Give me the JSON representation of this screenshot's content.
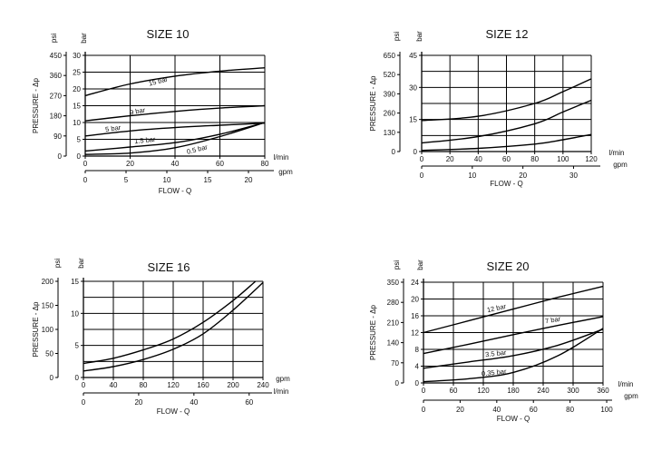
{
  "chart_data": [
    {
      "type": "line",
      "title": "SIZE 10",
      "ylabel": "PRESSURE - Δp",
      "y_units": [
        "psi",
        "bar"
      ],
      "y_ticks_psi": [
        "450",
        "360",
        "270",
        "180",
        "90",
        "0"
      ],
      "y_ticks_bar": [
        "30",
        "25",
        "20",
        "15",
        "10",
        "5",
        "0"
      ],
      "ylim": [
        0,
        30
      ],
      "xlabel": "FLOW - Q",
      "x_units": [
        "l/min",
        "gpm"
      ],
      "x_ticks_lmin": [
        "0",
        "20",
        "40",
        "60",
        "80"
      ],
      "x_ticks_gpm": [
        "0",
        "5",
        "10",
        "15",
        "20"
      ],
      "xlim": [
        0,
        80
      ],
      "series": [
        {
          "name": "15 bar",
          "x": [
            0,
            20,
            40,
            60,
            80
          ],
          "y": [
            18,
            21.5,
            23.8,
            25.3,
            26.3
          ]
        },
        {
          "name": "9 bar",
          "x": [
            0,
            20,
            40,
            60,
            80
          ],
          "y": [
            10.5,
            12,
            13.3,
            14.3,
            15
          ]
        },
        {
          "name": "5 bar",
          "x": [
            0,
            20,
            40,
            60,
            80
          ],
          "y": [
            6,
            7.5,
            8.5,
            9.2,
            9.8
          ]
        },
        {
          "name": "1.5 bar",
          "x": [
            0,
            20,
            40,
            60,
            80
          ],
          "y": [
            1.5,
            2.7,
            4,
            6.5,
            10
          ]
        },
        {
          "name": "0.5 bar",
          "x": [
            0,
            20,
            40,
            60,
            80
          ],
          "y": [
            0.5,
            0.9,
            2.5,
            5.8,
            10
          ]
        }
      ]
    },
    {
      "type": "line",
      "title": "SIZE 12",
      "ylabel": "PRESSURE - Δp",
      "y_units": [
        "psi",
        "bar"
      ],
      "y_ticks_psi": [
        "650",
        "520",
        "390",
        "260",
        "130",
        "0"
      ],
      "y_ticks_bar": [
        "45",
        "30",
        "15",
        "0"
      ],
      "ylim": [
        0,
        45
      ],
      "xlabel": "FLOW - Q",
      "x_units": [
        "l/min",
        "gpm"
      ],
      "x_ticks_lmin": [
        "0",
        "20",
        "40",
        "60",
        "80",
        "100",
        "120"
      ],
      "x_ticks_gpm": [
        "0",
        "10",
        "20",
        "30"
      ],
      "xlim": [
        0,
        120
      ],
      "series": [
        {
          "x": [
            0,
            40,
            80,
            100,
            120
          ],
          "y": [
            14.5,
            16.5,
            22.5,
            28,
            34
          ]
        },
        {
          "x": [
            0,
            40,
            80,
            100,
            120
          ],
          "y": [
            4,
            7,
            13,
            18.5,
            24
          ]
        },
        {
          "x": [
            0,
            40,
            80,
            100,
            120
          ],
          "y": [
            0.5,
            1.5,
            3.5,
            5.5,
            8
          ]
        }
      ]
    },
    {
      "type": "line",
      "title": "SIZE 16",
      "ylabel": "PRESSURE - Δp",
      "y_units": [
        "psi",
        "bar"
      ],
      "y_ticks_psi": [
        "200",
        "150",
        "100",
        "50",
        "0"
      ],
      "y_ticks_bar": [
        "15",
        "10",
        "5",
        "0"
      ],
      "ylim": [
        0,
        15
      ],
      "xlabel": "FLOW - Q",
      "x_units": [
        "gpm",
        "l/min"
      ],
      "x_ticks_lmin": [
        "0",
        "40",
        "80",
        "120",
        "160",
        "200",
        "240"
      ],
      "x_ticks_gpm": [
        "0",
        "20",
        "40",
        "60"
      ],
      "xlim": [
        0,
        240
      ],
      "series": [
        {
          "x": [
            0,
            40,
            80,
            120,
            160,
            200,
            230
          ],
          "y": [
            2.2,
            3,
            4.3,
            6,
            8.6,
            12,
            15
          ]
        },
        {
          "x": [
            0,
            40,
            80,
            120,
            160,
            200,
            240
          ],
          "y": [
            1,
            1.7,
            2.8,
            4.4,
            6.8,
            10.5,
            14.8
          ]
        }
      ]
    },
    {
      "type": "line",
      "title": "SIZE 20",
      "ylabel": "PRESSURE - Δp",
      "y_units": [
        "psi",
        "bar"
      ],
      "y_ticks_psi": [
        "350",
        "280",
        "210",
        "140",
        "70",
        "0"
      ],
      "y_ticks_bar": [
        "24",
        "20",
        "16",
        "12",
        "8",
        "4",
        "0"
      ],
      "ylim": [
        0,
        24
      ],
      "xlabel": "FLOW - Q",
      "x_units": [
        "l/min",
        "gpm"
      ],
      "x_ticks_lmin": [
        "0",
        "60",
        "120",
        "180",
        "240",
        "300",
        "360"
      ],
      "x_ticks_gpm": [
        "0",
        "20",
        "40",
        "60",
        "80",
        "100"
      ],
      "xlim": [
        0,
        360
      ],
      "series": [
        {
          "name": "12 bar",
          "x": [
            0,
            90,
            180,
            270,
            360
          ],
          "y": [
            12,
            14.8,
            17.6,
            20.4,
            23
          ]
        },
        {
          "name": "7 bar",
          "x": [
            0,
            90,
            180,
            270,
            360
          ],
          "y": [
            7,
            9.2,
            11.5,
            13.7,
            15.8
          ]
        },
        {
          "name": "3.5 bar",
          "x": [
            0,
            90,
            180,
            270,
            360
          ],
          "y": [
            3.5,
            5,
            6.5,
            9,
            12.8
          ]
        },
        {
          "name": "0.35 bar",
          "x": [
            0,
            90,
            180,
            270,
            360
          ],
          "y": [
            0.3,
            1,
            2.5,
            6.5,
            13
          ]
        }
      ]
    }
  ]
}
